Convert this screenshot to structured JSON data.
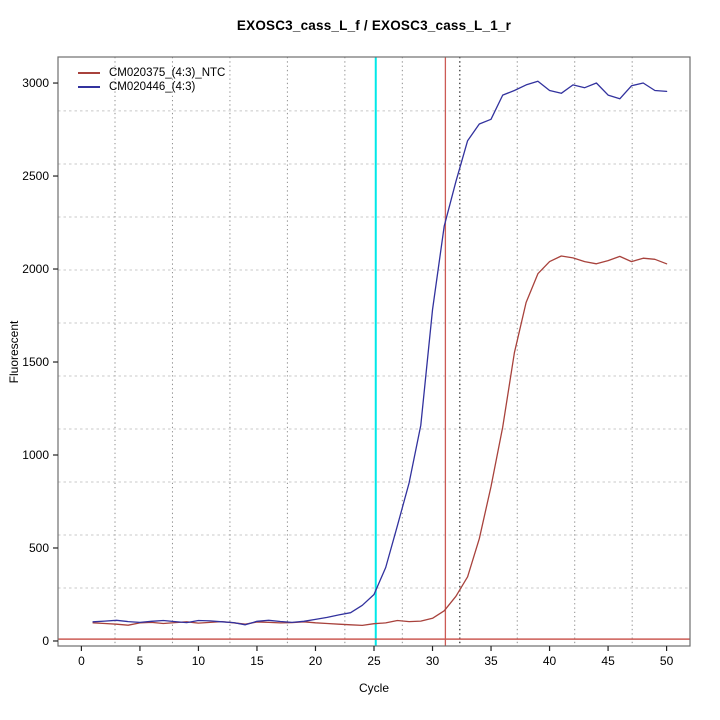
{
  "chart_data": {
    "type": "line",
    "title": "EXOSC3_cass_L_f / EXOSC3_cass_L_1_r",
    "xlabel": "Cycle",
    "ylabel": "Fluorescent",
    "x_ticks": [
      0,
      5,
      10,
      15,
      20,
      25,
      30,
      35,
      40,
      45,
      50
    ],
    "y_ticks": [
      0,
      500,
      1000,
      1500,
      2000,
      2500,
      3000
    ],
    "xlim": [
      -2,
      52
    ],
    "ylim": [
      -27,
      3140
    ],
    "x_range": [
      1,
      50
    ],
    "legend_position": "top-left",
    "grid": {
      "horizontal_y": [
        285,
        570,
        855,
        1140,
        1425,
        1710,
        1995,
        2280,
        2565,
        2850
      ],
      "vertical_x": [
        2.87,
        7.78,
        12.69,
        17.6,
        22.51,
        27.42,
        32.33,
        37.24,
        42.15,
        47.06
      ],
      "h_color": "#c8c8c8",
      "v_color": "#8f8f8f"
    },
    "series": [
      {
        "name": "CM020375_(4:3)_NTC",
        "color": "#a8423c",
        "values": [
          98,
          94,
          90,
          85,
          97,
          100,
          94,
          99,
          103,
          96,
          100,
          104,
          98,
          90,
          102,
          100,
          97,
          99,
          103,
          98,
          94,
          90,
          87,
          84,
          93,
          97,
          110,
          104,
          107,
          122,
          162,
          240,
          345,
          550,
          830,
          1150,
          1550,
          1820,
          1975,
          2040,
          2070,
          2060,
          2040,
          2028,
          2045,
          2068,
          2040,
          2058,
          2052,
          2028
        ]
      },
      {
        "name": "CM020446_(4:3)",
        "color": "#32329e",
        "values": [
          103,
          107,
          111,
          104,
          100,
          106,
          110,
          104,
          99,
          110,
          108,
          103,
          99,
          87,
          106,
          111,
          105,
          100,
          106,
          116,
          127,
          140,
          152,
          192,
          250,
          395,
          620,
          850,
          1160,
          1780,
          2230,
          2470,
          2690,
          2780,
          2805,
          2935,
          2960,
          2990,
          3010,
          2960,
          2945,
          2990,
          2975,
          3000,
          2935,
          2915,
          2985,
          3000,
          2960,
          2955
        ]
      }
    ],
    "markers": [
      {
        "name": "cyan-threshold-cycle-line",
        "orientation": "vertical",
        "pos": 25.15,
        "color": "#00e8e8",
        "style": "solid",
        "width": 2
      },
      {
        "name": "red-threshold-cycle-line",
        "orientation": "vertical",
        "pos": 31.1,
        "color": "#cc5b55",
        "style": "solid",
        "width": 1.3
      },
      {
        "name": "dark-dotted-ct-line",
        "orientation": "vertical",
        "pos": 32.33,
        "color": "#3b3b3b",
        "style": "dotted",
        "width": 1.3
      },
      {
        "name": "threshold-line",
        "orientation": "horizontal",
        "pos": 10,
        "color": "#cc5b55",
        "style": "solid",
        "width": 1.6
      }
    ]
  }
}
